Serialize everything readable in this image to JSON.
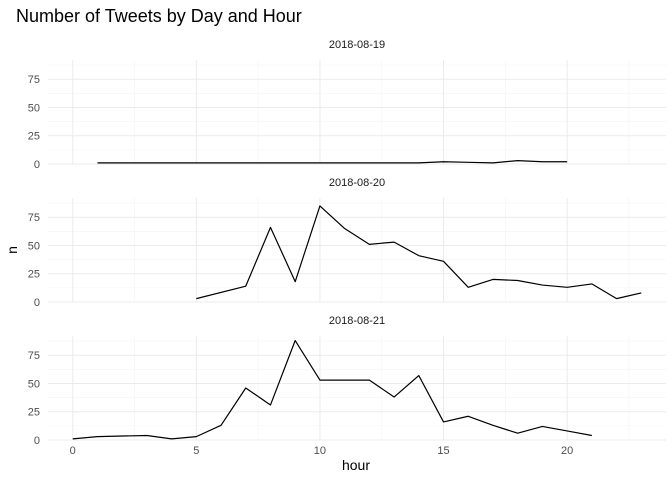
{
  "chart_data": {
    "type": "line",
    "title": "Number of Tweets by Day and Hour",
    "xlabel": "hour",
    "ylabel": "n",
    "xlim": [
      -1,
      24
    ],
    "ylim": [
      0,
      92
    ],
    "x_ticks": [
      0,
      5,
      10,
      15,
      20
    ],
    "y_ticks": [
      0,
      25,
      50,
      75
    ],
    "grid": true,
    "legend": "none",
    "facets": [
      {
        "label": "2018-08-19",
        "x": [
          1,
          2,
          3,
          4,
          5,
          6,
          7,
          8,
          9,
          10,
          11,
          12,
          13,
          14,
          15,
          16,
          17,
          18,
          19,
          20
        ],
        "y": [
          1,
          1,
          1,
          1,
          1,
          1,
          1,
          1,
          1,
          1,
          1,
          1,
          1,
          1,
          2,
          1.5,
          1,
          3,
          2,
          2
        ]
      },
      {
        "label": "2018-08-20",
        "x": [
          5,
          7,
          8,
          9,
          10,
          11,
          12,
          13,
          14,
          15,
          16,
          17,
          18,
          19,
          20,
          21,
          22,
          23
        ],
        "y": [
          3,
          14,
          66,
          18,
          85,
          65,
          51,
          53,
          41,
          36,
          13,
          20,
          19,
          15,
          13,
          16,
          3,
          8
        ]
      },
      {
        "label": "2018-08-21",
        "x": [
          0,
          1,
          3,
          4,
          5,
          6,
          7,
          8,
          9,
          10,
          11,
          12,
          13,
          14,
          15,
          16,
          17,
          18,
          19,
          20,
          21
        ],
        "y": [
          1,
          3,
          4,
          1,
          3,
          13,
          46,
          31,
          88,
          53,
          53,
          53,
          38,
          57,
          16,
          21,
          13,
          6,
          12,
          8,
          4
        ]
      }
    ]
  }
}
